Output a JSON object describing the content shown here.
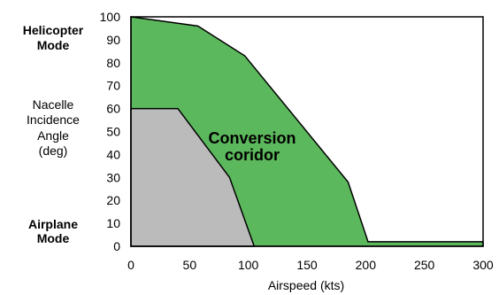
{
  "chart_data": {
    "type": "area",
    "xlabel": "Airspeed (kts)",
    "xlim": [
      0,
      300
    ],
    "ylim": [
      0,
      100
    ],
    "x_ticks": [
      "0",
      "50",
      "100",
      "150",
      "200",
      "250",
      "300"
    ],
    "y_ticks": [
      "0",
      "10",
      "20",
      "30",
      "40",
      "50",
      "60",
      "70",
      "80",
      "90",
      "100"
    ],
    "grid": false,
    "side_labels": {
      "top_bold": [
        "Helicopter",
        "Mode"
      ],
      "middle": [
        "Nacelle",
        "Incidence",
        "Angle",
        "(deg)"
      ],
      "bottom_bold": [
        "Airplane",
        "Mode"
      ]
    },
    "annotation": [
      "Conversion",
      "coridor"
    ],
    "series": [
      {
        "color": "#5cb85c",
        "points": [
          [
            0,
            100
          ],
          [
            57,
            96
          ],
          [
            97,
            83
          ],
          [
            185,
            28
          ],
          [
            202,
            2
          ],
          [
            300,
            2
          ],
          [
            300,
            0
          ],
          [
            0,
            0
          ]
        ]
      },
      {
        "color": "#bbbbbb",
        "points": [
          [
            0,
            60
          ],
          [
            40,
            60
          ],
          [
            84,
            30
          ],
          [
            105,
            0
          ],
          [
            0,
            0
          ]
        ]
      }
    ]
  }
}
